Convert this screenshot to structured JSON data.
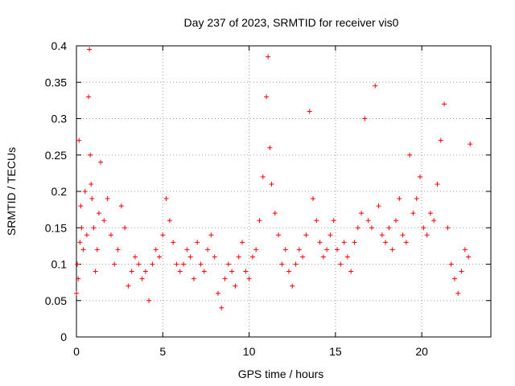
{
  "chart_data": {
    "type": "scatter",
    "title": "Day 237 of 2023, SRMTID for receiver vis0",
    "xlabel": "GPS time / hours",
    "ylabel": "SRMTID / TECUs",
    "xlim": [
      0,
      24
    ],
    "ylim": [
      0,
      0.4
    ],
    "x_ticks": [
      0,
      5,
      10,
      15,
      20
    ],
    "x_tick_labels": [
      "0",
      "5",
      "10",
      "15",
      "20"
    ],
    "y_ticks": [
      0,
      0.05,
      0.1,
      0.15,
      0.2,
      0.25,
      0.3,
      0.35,
      0.4
    ],
    "y_tick_labels": [
      "0",
      "0.05",
      "0.1",
      "0.15",
      "0.2",
      "0.25",
      "0.3",
      "0.35",
      "0.4"
    ],
    "grid": true,
    "marker": "plus",
    "color": "#ff0000",
    "series": [
      {
        "name": "SRMTID vis0",
        "x": [
          0.0,
          0.05,
          0.1,
          0.15,
          0.2,
          0.25,
          0.3,
          0.4,
          0.5,
          0.6,
          0.7,
          0.75,
          0.8,
          0.85,
          0.9,
          1.0,
          1.1,
          1.2,
          1.3,
          1.4,
          1.6,
          1.8,
          2.0,
          2.2,
          2.4,
          2.6,
          2.8,
          3.0,
          3.2,
          3.4,
          3.6,
          3.8,
          4.0,
          4.2,
          4.4,
          4.6,
          4.8,
          5.0,
          5.2,
          5.4,
          5.6,
          5.8,
          6.0,
          6.2,
          6.4,
          6.6,
          6.8,
          7.0,
          7.2,
          7.4,
          7.6,
          7.8,
          8.0,
          8.2,
          8.4,
          8.6,
          8.8,
          9.0,
          9.2,
          9.4,
          9.6,
          9.8,
          10.0,
          10.2,
          10.4,
          10.6,
          10.8,
          11.0,
          11.1,
          11.2,
          11.3,
          11.5,
          11.7,
          11.9,
          12.1,
          12.3,
          12.5,
          12.7,
          12.9,
          13.1,
          13.3,
          13.5,
          13.7,
          13.9,
          14.1,
          14.3,
          14.5,
          14.7,
          14.9,
          15.1,
          15.3,
          15.5,
          15.7,
          15.9,
          16.1,
          16.3,
          16.5,
          16.7,
          16.9,
          17.1,
          17.3,
          17.5,
          17.7,
          17.9,
          18.1,
          18.3,
          18.5,
          18.7,
          18.9,
          19.1,
          19.3,
          19.5,
          19.7,
          19.9,
          20.1,
          20.3,
          20.5,
          20.7,
          20.9,
          21.1,
          21.3,
          21.5,
          21.7,
          21.9,
          22.1,
          22.3,
          22.5,
          22.7,
          22.8
        ],
        "y": [
          0.06,
          0.1,
          0.08,
          0.27,
          0.13,
          0.18,
          0.15,
          0.12,
          0.2,
          0.14,
          0.33,
          0.395,
          0.25,
          0.21,
          0.19,
          0.15,
          0.09,
          0.12,
          0.17,
          0.24,
          0.16,
          0.19,
          0.14,
          0.1,
          0.12,
          0.18,
          0.15,
          0.07,
          0.09,
          0.11,
          0.1,
          0.08,
          0.09,
          0.05,
          0.1,
          0.12,
          0.11,
          0.14,
          0.19,
          0.16,
          0.13,
          0.1,
          0.09,
          0.1,
          0.12,
          0.11,
          0.08,
          0.13,
          0.1,
          0.09,
          0.12,
          0.14,
          0.11,
          0.06,
          0.04,
          0.08,
          0.1,
          0.09,
          0.07,
          0.11,
          0.13,
          0.09,
          0.08,
          0.11,
          0.12,
          0.16,
          0.22,
          0.33,
          0.385,
          0.26,
          0.21,
          0.17,
          0.14,
          0.1,
          0.12,
          0.09,
          0.07,
          0.1,
          0.12,
          0.11,
          0.14,
          0.31,
          0.19,
          0.16,
          0.13,
          0.11,
          0.12,
          0.14,
          0.16,
          0.12,
          0.1,
          0.13,
          0.11,
          0.09,
          0.13,
          0.15,
          0.17,
          0.3,
          0.16,
          0.15,
          0.345,
          0.18,
          0.14,
          0.13,
          0.15,
          0.12,
          0.16,
          0.19,
          0.14,
          0.13,
          0.25,
          0.17,
          0.19,
          0.22,
          0.15,
          0.14,
          0.17,
          0.16,
          0.21,
          0.27,
          0.32,
          0.15,
          0.1,
          0.08,
          0.06,
          0.09,
          0.12,
          0.11,
          0.265
        ]
      }
    ]
  }
}
